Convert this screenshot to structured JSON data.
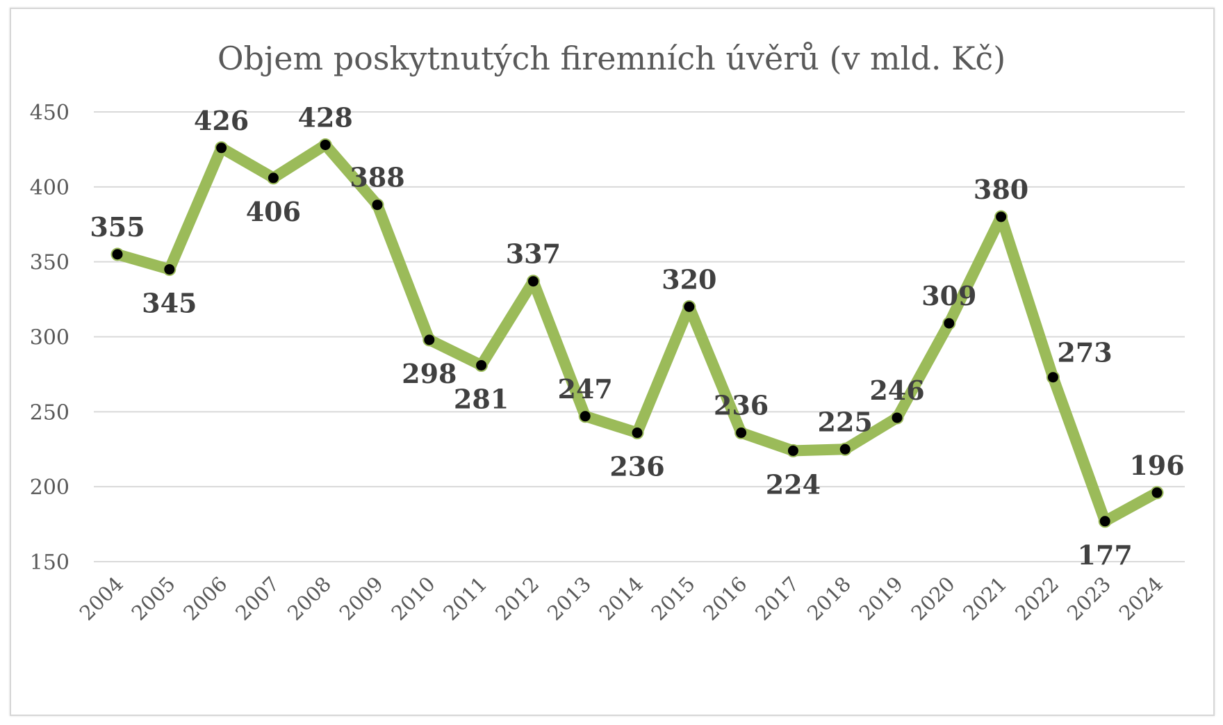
{
  "chart_data": {
    "type": "line",
    "title": "Objem poskytnutých firemních úvěrů (v mld. Kč)",
    "xlabel": "",
    "ylabel": "",
    "ylim": [
      150,
      450
    ],
    "yticks": [
      150,
      200,
      250,
      300,
      350,
      400,
      450
    ],
    "grid": true,
    "legend": "none",
    "line_color": "#9bbb59",
    "marker_color": "#000000",
    "categories": [
      "2004",
      "2005",
      "2006",
      "2007",
      "2008",
      "2009",
      "2010",
      "2011",
      "2012",
      "2013",
      "2014",
      "2015",
      "2016",
      "2017",
      "2018",
      "2019",
      "2020",
      "2021",
      "2022",
      "2023",
      "2024"
    ],
    "series": [
      {
        "values": [
          355,
          345,
          426,
          406,
          428,
          388,
          298,
          281,
          337,
          247,
          236,
          320,
          236,
          224,
          225,
          246,
          309,
          380,
          273,
          177,
          196
        ],
        "label_positions": [
          "above",
          "below",
          "above",
          "below",
          "above",
          "above",
          "below",
          "below",
          "above",
          "above",
          "below",
          "above",
          "above",
          "below",
          "above",
          "above",
          "above",
          "above",
          "right",
          "below",
          "above"
        ]
      }
    ]
  }
}
